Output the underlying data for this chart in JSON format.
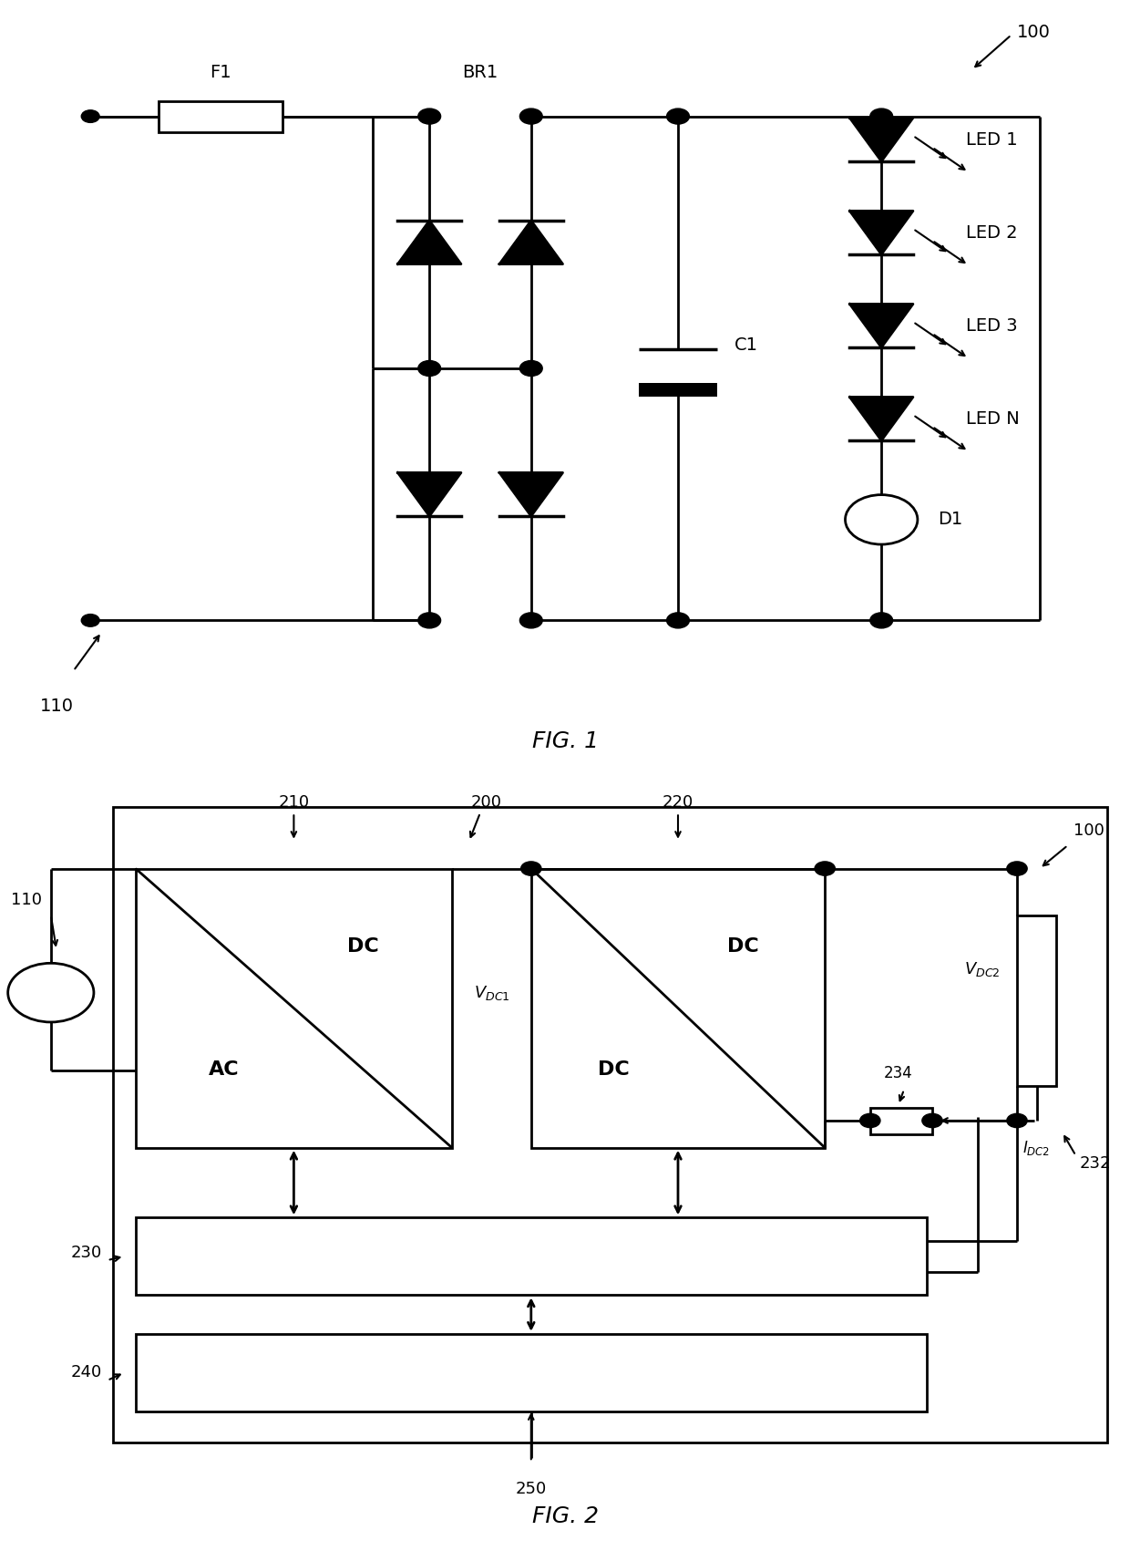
{
  "fig1_title": "FIG. 1",
  "fig2_title": "FIG. 2",
  "bg_color": "#ffffff",
  "line_color": "#000000",
  "label_100_fig1": "100",
  "label_110_fig1": "110",
  "label_BR1": "BR1",
  "label_F1": "F1",
  "label_C1": "C1",
  "label_D1": "D1",
  "label_LED1": "LED 1",
  "label_LED2": "LED 2",
  "label_LED3": "LED 3",
  "label_LEDN": "LED N",
  "label_100_fig2": "100",
  "label_110_fig2": "110",
  "label_200": "200",
  "label_210": "210",
  "label_220": "220",
  "label_230": "230",
  "label_232": "232",
  "label_234": "234",
  "label_240": "240",
  "label_250": "250"
}
